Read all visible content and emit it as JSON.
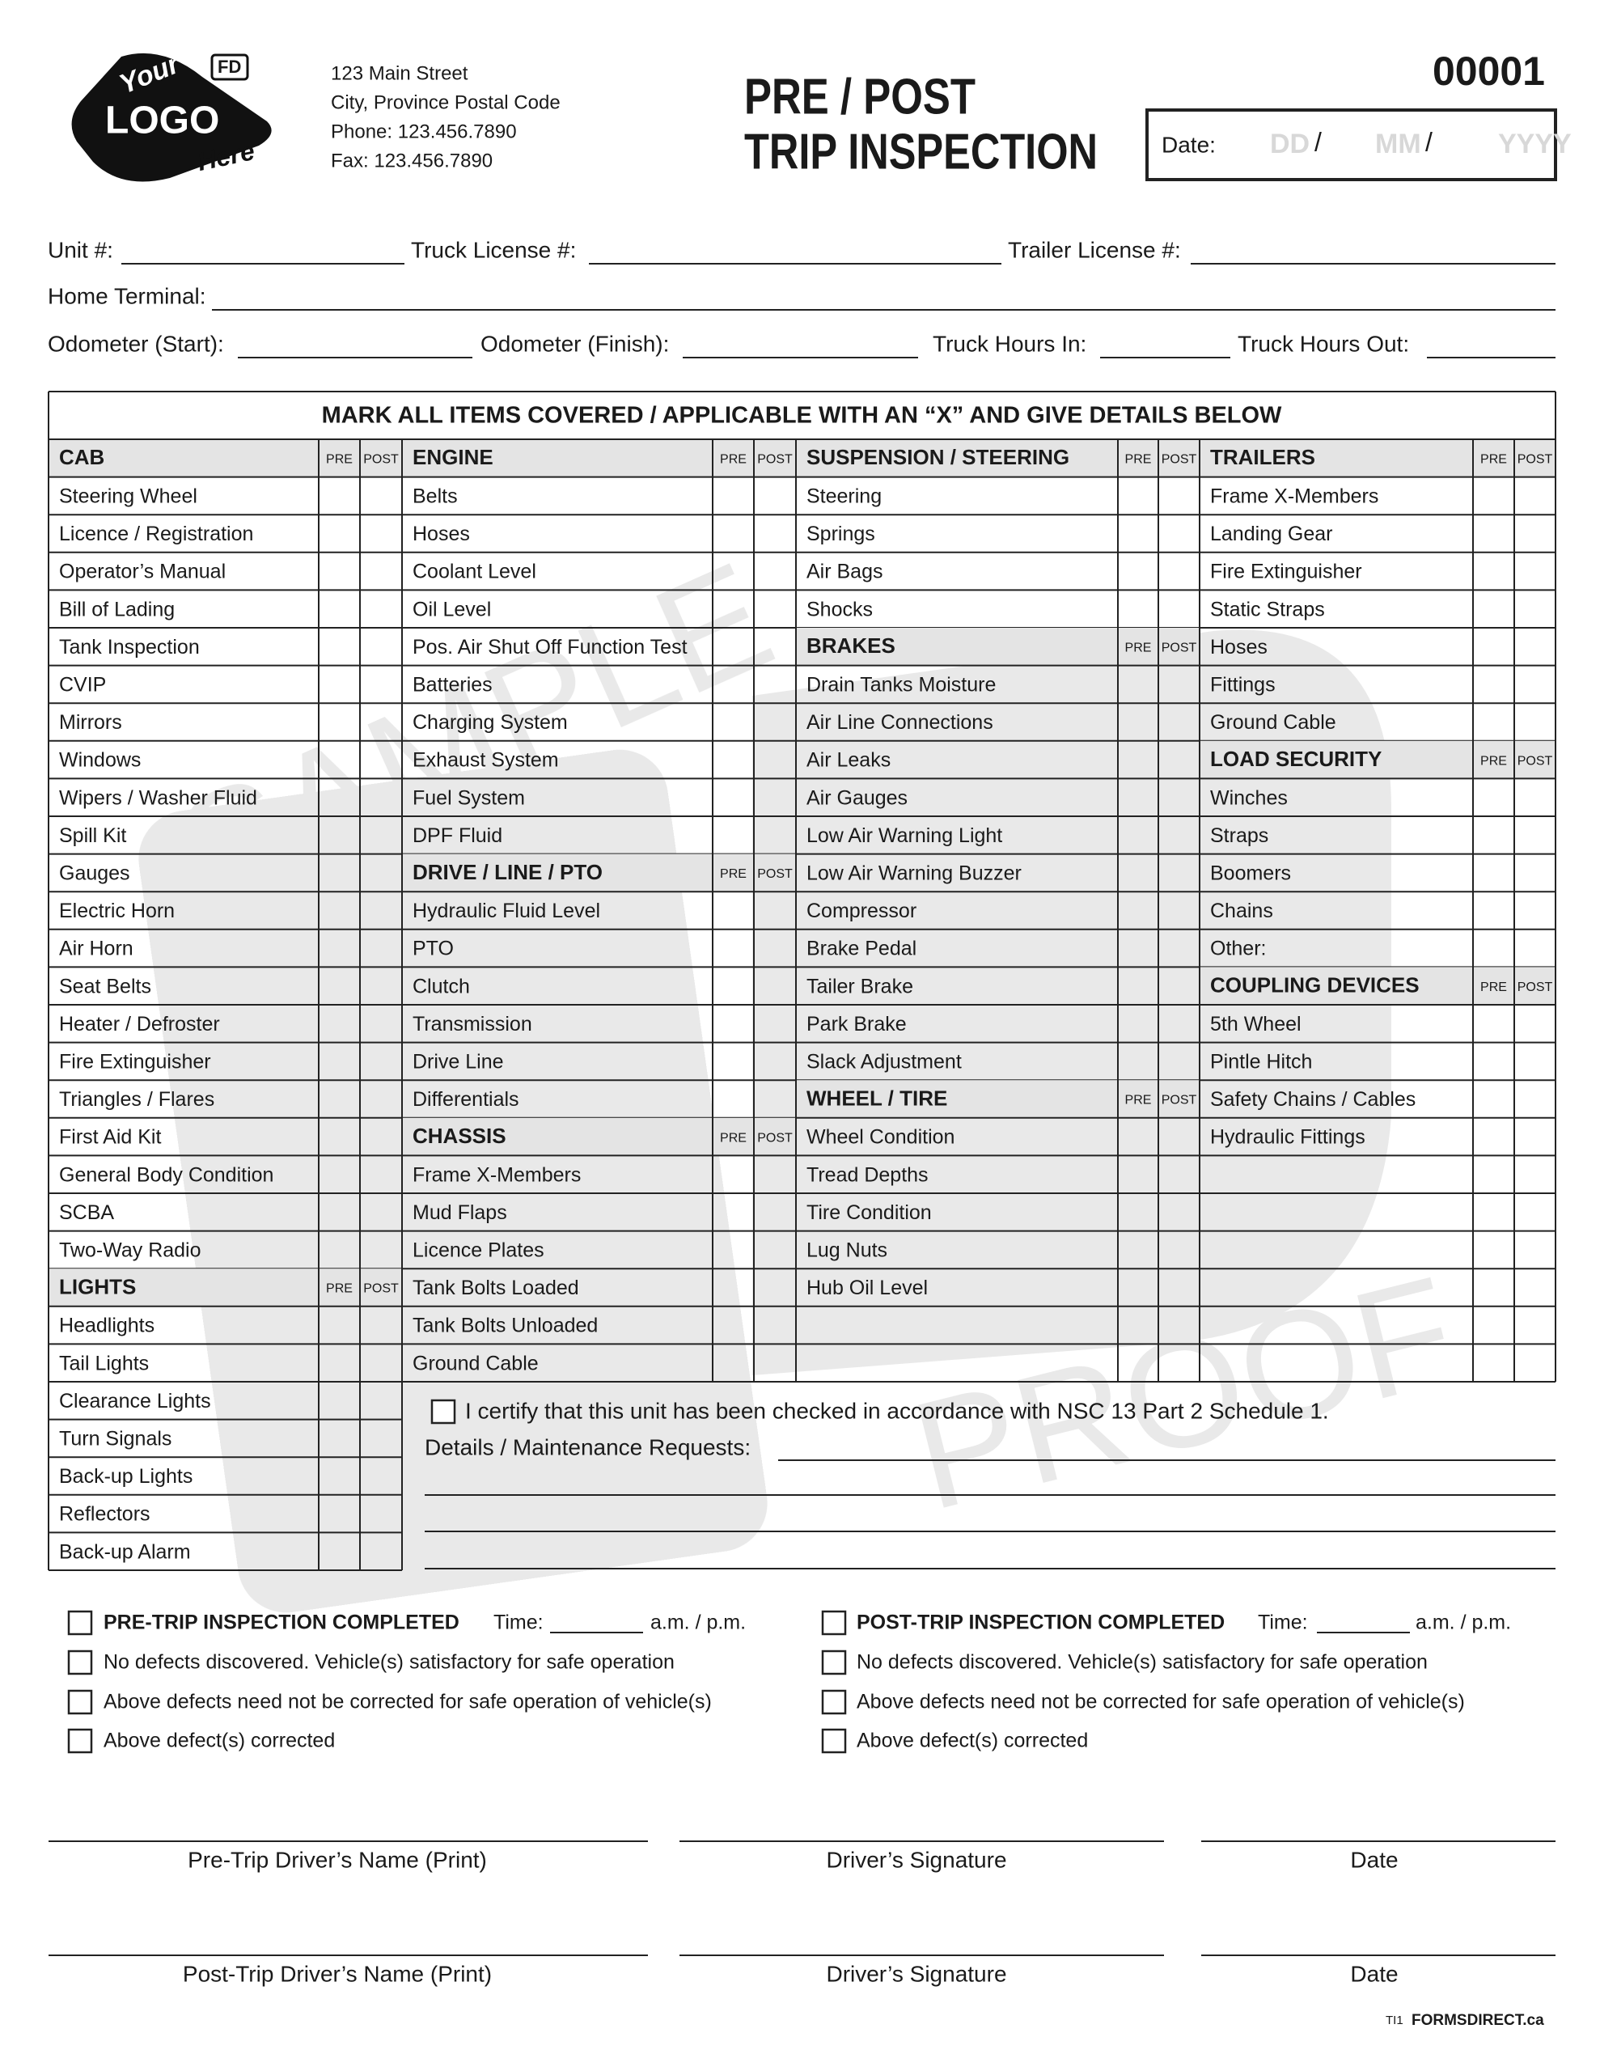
{
  "logo": {
    "top": "Your",
    "main": "LOGO",
    "bottom": "Here",
    "badge": "FD"
  },
  "header": {
    "address": [
      "123 Main Street",
      "City, Province Postal Code",
      "Phone: 123.456.7890",
      "Fax: 123.456.7890"
    ],
    "title": [
      "PRE / POST",
      "TRIP INSPECTION"
    ],
    "form_number": "00001",
    "date": {
      "label": "Date:",
      "day": "DD",
      "month": "MM",
      "year": "YYYY",
      "separators": [
        "/",
        "/"
      ]
    }
  },
  "fields": [
    [
      "Unit #:",
      "Truck License #:",
      "Trailer License #:"
    ],
    [
      "Home Terminal:"
    ],
    [
      "Odometer (Start):",
      "Odometer (Finish):",
      "Truck Hours In:",
      "Truck Hours Out:"
    ]
  ],
  "watermark": [
    "SAMPLE",
    "PROOF"
  ],
  "table": {
    "instruction": "MARK ALL ITEMS COVERED / APPLICABLE WITH  AN “X” AND GIVE DETAILS BELOW",
    "columns": [
      {
        "rows": [
          {
            "section": "CAB",
            "pre": "PRE",
            "post": "POST"
          },
          "Steering Wheel",
          "Licence / Registration",
          "Operator’s Manual",
          "Bill of Lading",
          "Tank Inspection",
          "CVIP",
          "Mirrors",
          "Windows",
          "Wipers  / Washer Fluid",
          "Spill Kit",
          "Gauges",
          "Electric Horn",
          "Air Horn",
          "Seat Belts",
          "Heater / Defroster",
          "Fire Extinguisher",
          "Triangles / Flares",
          "First Aid Kit",
          "General Body Condition",
          "SCBA",
          "Two-Way Radio",
          {
            "section": "LIGHTS",
            "pre": "PRE",
            "post": "POST"
          },
          "Headlights",
          "Tail Lights",
          "Clearance Lights",
          "Turn Signals",
          "Back-up Lights",
          "Reflectors",
          "Back-up Alarm"
        ]
      },
      {
        "rows": [
          {
            "section": "ENGINE",
            "pre": "PRE",
            "post": "POST"
          },
          "Belts",
          "Hoses",
          "Coolant Level",
          "Oil Level",
          "Pos. Air Shut Off Function Test",
          "Batteries",
          "Charging System",
          "Exhaust System",
          "Fuel System",
          "DPF Fluid",
          {
            "section": "DRIVE / LINE / PTO",
            "pre": "PRE",
            "post": "POST"
          },
          "Hydraulic Fluid Level",
          "PTO",
          "Clutch",
          "Transmission",
          "Drive Line",
          "Differentials",
          {
            "section": "CHASSIS",
            "pre": "PRE",
            "post": "POST"
          },
          "Frame X-Members",
          "Mud Flaps",
          "Licence Plates",
          "Tank Bolts Loaded",
          "Tank Bolts Unloaded",
          "Ground Cable"
        ]
      },
      {
        "rows": [
          {
            "section": "SUSPENSION / STEERING",
            "pre": "PRE",
            "post": "POST"
          },
          "Steering",
          "Springs",
          "Air Bags",
          "Shocks",
          {
            "section": "BRAKES",
            "pre": "PRE",
            "post": "POST"
          },
          "Drain Tanks Moisture",
          "Air Line Connections",
          "Air Leaks",
          "Air Gauges",
          "Low Air Warning Light",
          "Low Air Warning Buzzer",
          "Compressor",
          "Brake Pedal",
          "Tailer Brake",
          "Park Brake",
          "Slack Adjustment",
          {
            "section": "WHEEL / TIRE",
            "pre": "PRE",
            "post": "POST"
          },
          "Wheel Condition",
          "Tread Depths",
          "Tire Condition",
          "Lug Nuts",
          "Hub Oil Level"
        ]
      },
      {
        "rows": [
          {
            "section": "TRAILERS",
            "pre": "PRE",
            "post": "POST"
          },
          "Frame X-Members",
          "Landing Gear",
          "Fire Extinguisher",
          "Static Straps",
          "Hoses",
          "Fittings",
          "Ground Cable",
          {
            "section": "LOAD SECURITY",
            "pre": "PRE",
            "post": "POST"
          },
          "Winches",
          "Straps",
          "Boomers",
          "Chains",
          "Other:",
          {
            "section": "COUPLING DEVICES",
            "pre": "PRE",
            "post": "POST"
          },
          "5th Wheel",
          "Pintle Hitch",
          "Safety Chains / Cables",
          "Hydraulic Fittings"
        ]
      }
    ]
  },
  "certification": "I certify that this unit has been checked in accordance with NSC 13 Part 2 Schedule 1.",
  "details_label": "Details / Maintenance Requests:",
  "completion": [
    {
      "title": "PRE-TRIP INSPECTION COMPLETED",
      "time_label": "Time:",
      "time_suffix": "a.m. / p.m.",
      "options": [
        "No defects discovered. Vehicle(s) satisfactory for safe operation",
        "Above defects need not be corrected for safe operation of vehicle(s)",
        "Above defect(s) corrected"
      ]
    },
    {
      "title": "POST-TRIP INSPECTION COMPLETED",
      "time_label": "Time:",
      "time_suffix": "a.m. / p.m.",
      "options": [
        "No defects discovered. Vehicle(s) satisfactory for safe operation",
        "Above defects need not be corrected for safe operation of vehicle(s)",
        "Above defect(s) corrected"
      ]
    }
  ],
  "signatures": [
    {
      "name": "Pre-Trip Driver’s Name (Print)",
      "signature": "Driver’s Signature",
      "date": "Date"
    },
    {
      "name": "Post-Trip Driver’s Name (Print)",
      "signature": "Driver’s Signature",
      "date": "Date"
    }
  ],
  "footer": {
    "code": "TI1",
    "brand": "FORMSDIRECT.ca"
  }
}
